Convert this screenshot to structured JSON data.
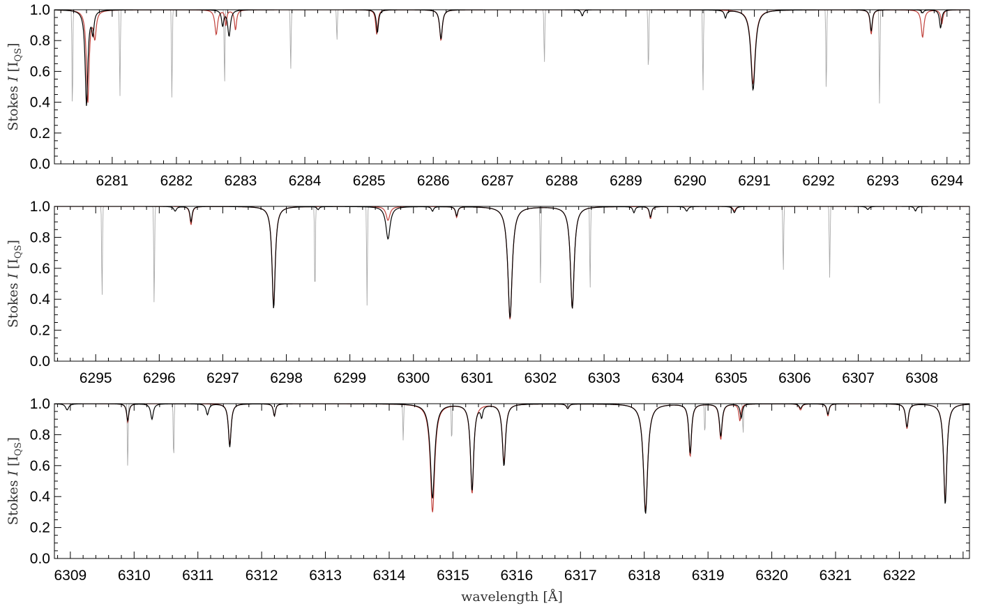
{
  "chart_data": [
    {
      "type": "line",
      "ylabel": "Stokes I [I_QS]",
      "ylabel_parts": {
        "pre": "Stokes ",
        "var": "I",
        "bracket_open": " [I",
        "sub": "QS",
        "bracket_close": "]"
      },
      "xlim": [
        6280.1,
        6294.35
      ],
      "ylim": [
        0.0,
        1.0
      ],
      "x_ticks": [
        6281,
        6282,
        6283,
        6284,
        6285,
        6286,
        6287,
        6288,
        6289,
        6290,
        6291,
        6292,
        6293,
        6294
      ],
      "y_ticks": [
        "0.0",
        "0.2",
        "0.4",
        "0.6",
        "0.8",
        "1.0"
      ],
      "series": [
        {
          "role": "observed",
          "color": "#000000",
          "lines": [
            [
              6280.6,
              0.38,
              0.05
            ],
            [
              6280.7,
              0.86,
              0.04
            ],
            [
              6282.72,
              0.9,
              0.04
            ],
            [
              6282.82,
              0.83,
              0.05
            ],
            [
              6285.13,
              0.85,
              0.04
            ],
            [
              6286.12,
              0.81,
              0.05
            ],
            [
              6288.32,
              0.96,
              0.04
            ],
            [
              6290.55,
              0.95,
              0.04
            ],
            [
              6290.98,
              0.48,
              0.08
            ],
            [
              6292.82,
              0.86,
              0.04
            ],
            [
              6293.62,
              0.98,
              0.04
            ],
            [
              6293.9,
              0.88,
              0.04
            ]
          ]
        },
        {
          "role": "fit",
          "color": "#c0403a",
          "lines": [
            [
              6280.62,
              0.4,
              0.05
            ],
            [
              6280.73,
              0.83,
              0.05
            ],
            [
              6282.62,
              0.84,
              0.05
            ],
            [
              6282.77,
              0.9,
              0.03
            ],
            [
              6282.92,
              0.87,
              0.04
            ],
            [
              6285.12,
              0.84,
              0.04
            ],
            [
              6286.12,
              0.8,
              0.05
            ],
            [
              6290.98,
              0.52,
              0.08
            ],
            [
              6292.82,
              0.84,
              0.04
            ],
            [
              6293.62,
              0.82,
              0.05
            ],
            [
              6293.92,
              0.91,
              0.04
            ]
          ]
        },
        {
          "role": "telluric",
          "color": "#a8a8a8",
          "lines": [
            [
              6280.38,
              0.34,
              0.015
            ],
            [
              6281.12,
              0.43,
              0.015
            ],
            [
              6281.93,
              0.42,
              0.015
            ],
            [
              6282.75,
              0.51,
              0.015
            ],
            [
              6283.78,
              0.61,
              0.015
            ],
            [
              6284.5,
              0.8,
              0.015
            ],
            [
              6287.73,
              0.65,
              0.015
            ],
            [
              6289.35,
              0.59,
              0.015
            ],
            [
              6290.2,
              0.46,
              0.015
            ],
            [
              6292.12,
              0.46,
              0.015
            ],
            [
              6292.95,
              0.38,
              0.015
            ]
          ]
        }
      ]
    },
    {
      "type": "line",
      "ylabel": "Stokes I [I_QS]",
      "ylabel_parts": {
        "pre": "Stokes ",
        "var": "I",
        "bracket_open": " [I",
        "sub": "QS",
        "bracket_close": "]"
      },
      "xlim": [
        6294.35,
        6308.75
      ],
      "ylim": [
        0.0,
        1.0
      ],
      "x_ticks": [
        6295,
        6296,
        6297,
        6298,
        6299,
        6300,
        6301,
        6302,
        6303,
        6304,
        6305,
        6306,
        6307,
        6308
      ],
      "y_ticks": [
        "0.0",
        "0.2",
        "0.4",
        "0.6",
        "0.8",
        "1.0"
      ],
      "series": [
        {
          "role": "observed",
          "color": "#000000",
          "lines": [
            [
              6296.25,
              0.97,
              0.05
            ],
            [
              6296.5,
              0.9,
              0.04
            ],
            [
              6297.8,
              0.34,
              0.06
            ],
            [
              6298.5,
              0.98,
              0.04
            ],
            [
              6299.6,
              0.79,
              0.08
            ],
            [
              6300.3,
              0.97,
              0.04
            ],
            [
              6300.68,
              0.94,
              0.04
            ],
            [
              6301.52,
              0.28,
              0.08
            ],
            [
              6302.5,
              0.34,
              0.07
            ],
            [
              6303.47,
              0.96,
              0.04
            ],
            [
              6303.73,
              0.93,
              0.04
            ],
            [
              6304.3,
              0.97,
              0.05
            ],
            [
              6305.05,
              0.96,
              0.05
            ],
            [
              6307.15,
              0.98,
              0.05
            ],
            [
              6307.9,
              0.97,
              0.04
            ]
          ]
        },
        {
          "role": "fit",
          "color": "#c0403a",
          "lines": [
            [
              6296.5,
              0.88,
              0.04
            ],
            [
              6297.8,
              0.36,
              0.06
            ],
            [
              6299.6,
              0.91,
              0.07
            ],
            [
              6300.68,
              0.93,
              0.04
            ],
            [
              6301.52,
              0.27,
              0.08
            ],
            [
              6302.5,
              0.34,
              0.07
            ],
            [
              6303.73,
              0.92,
              0.04
            ],
            [
              6305.05,
              0.97,
              0.05
            ]
          ]
        },
        {
          "role": "telluric",
          "color": "#a8a8a8",
          "lines": [
            [
              6295.1,
              0.4,
              0.015
            ],
            [
              6295.92,
              0.35,
              0.015
            ],
            [
              6298.45,
              0.41,
              0.015
            ],
            [
              6299.27,
              0.36,
              0.015
            ],
            [
              6302.0,
              0.48,
              0.015
            ],
            [
              6302.78,
              0.45,
              0.015
            ],
            [
              6305.82,
              0.57,
              0.015
            ],
            [
              6306.55,
              0.54,
              0.015
            ]
          ]
        }
      ]
    },
    {
      "type": "line",
      "ylabel": "Stokes I [I_QS]",
      "ylabel_parts": {
        "pre": "Stokes ",
        "var": "I",
        "bracket_open": " [I",
        "sub": "QS",
        "bracket_close": "]"
      },
      "xlabel": "wavelength [Å]",
      "xlim": [
        6308.75,
        6323.1
      ],
      "ylim": [
        0.0,
        1.0
      ],
      "x_ticks": [
        6309,
        6310,
        6311,
        6312,
        6313,
        6314,
        6315,
        6316,
        6317,
        6318,
        6319,
        6320,
        6321,
        6322
      ],
      "y_ticks": [
        "0.0",
        "0.2",
        "0.4",
        "0.6",
        "0.8",
        "1.0"
      ],
      "series": [
        {
          "role": "observed",
          "color": "#000000",
          "lines": [
            [
              6308.95,
              0.96,
              0.06
            ],
            [
              6309.9,
              0.89,
              0.04
            ],
            [
              6310.28,
              0.9,
              0.05
            ],
            [
              6311.15,
              0.93,
              0.05
            ],
            [
              6311.5,
              0.72,
              0.05
            ],
            [
              6312.2,
              0.92,
              0.04
            ],
            [
              6314.68,
              0.39,
              0.08
            ],
            [
              6315.3,
              0.44,
              0.06
            ],
            [
              6315.45,
              0.93,
              0.04
            ],
            [
              6315.8,
              0.6,
              0.06
            ],
            [
              6316.8,
              0.97,
              0.05
            ],
            [
              6318.02,
              0.29,
              0.08
            ],
            [
              6318.72,
              0.68,
              0.05
            ],
            [
              6319.2,
              0.79,
              0.05
            ],
            [
              6319.52,
              0.91,
              0.04
            ],
            [
              6320.45,
              0.97,
              0.05
            ],
            [
              6320.88,
              0.93,
              0.04
            ],
            [
              6322.12,
              0.85,
              0.05
            ],
            [
              6322.72,
              0.35,
              0.06
            ]
          ]
        },
        {
          "role": "fit",
          "color": "#c0403a",
          "lines": [
            [
              6309.9,
              0.88,
              0.04
            ],
            [
              6311.5,
              0.73,
              0.05
            ],
            [
              6312.2,
              0.92,
              0.04
            ],
            [
              6314.68,
              0.3,
              0.08
            ],
            [
              6315.3,
              0.42,
              0.06
            ],
            [
              6315.8,
              0.62,
              0.06
            ],
            [
              6316.8,
              0.97,
              0.05
            ],
            [
              6318.02,
              0.31,
              0.08
            ],
            [
              6318.72,
              0.66,
              0.05
            ],
            [
              6319.2,
              0.77,
              0.05
            ],
            [
              6319.5,
              0.89,
              0.04
            ],
            [
              6320.45,
              0.96,
              0.05
            ],
            [
              6320.88,
              0.92,
              0.04
            ],
            [
              6322.12,
              0.84,
              0.05
            ],
            [
              6322.72,
              0.37,
              0.06
            ]
          ]
        },
        {
          "role": "telluric",
          "color": "#a8a8a8",
          "lines": [
            [
              6309.9,
              0.58,
              0.015
            ],
            [
              6310.62,
              0.63,
              0.015
            ],
            [
              6314.22,
              0.76,
              0.015
            ],
            [
              6314.98,
              0.75,
              0.015
            ],
            [
              6318.95,
              0.8,
              0.015
            ],
            [
              6319.55,
              0.8,
              0.015
            ]
          ]
        }
      ]
    }
  ]
}
